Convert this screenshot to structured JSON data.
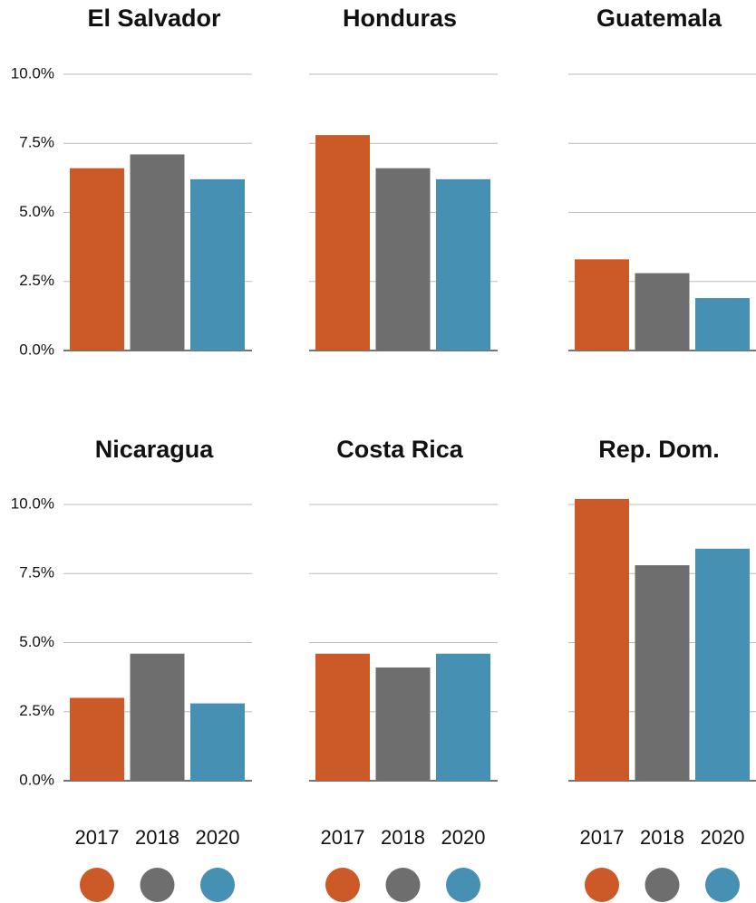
{
  "chart_data": [
    {
      "type": "bar",
      "title": "El Salvador",
      "values": [
        6.6,
        7.1,
        6.2
      ],
      "colors": [
        "#cc5a28",
        "#6e6e6e",
        "#4690b4"
      ],
      "ylim": [
        0,
        10
      ],
      "yticks": [
        {
          "value": 0,
          "label": "0.0%"
        },
        {
          "value": 2.5,
          "label": "2.5%"
        },
        {
          "value": 5,
          "label": "5.0%"
        },
        {
          "value": 7.5,
          "label": "7.5%"
        },
        {
          "value": 10,
          "label": "10.0%"
        }
      ]
    },
    {
      "type": "bar",
      "title": "Honduras",
      "values": [
        7.8,
        6.6,
        6.2
      ],
      "colors": [
        "#cc5a28",
        "#6e6e6e",
        "#4690b4"
      ],
      "ylim": [
        0,
        10
      ],
      "yticks": [
        0,
        2.5,
        5,
        7.5,
        10
      ]
    },
    {
      "type": "bar",
      "title": "Guatemala",
      "values": [
        3.3,
        2.8,
        1.9
      ],
      "colors": [
        "#cc5a28",
        "#6e6e6e",
        "#4690b4"
      ],
      "ylim": [
        0,
        10
      ],
      "yticks": [
        0,
        2.5,
        5,
        7.5,
        10
      ]
    },
    {
      "type": "bar",
      "title": "Nicaragua",
      "categories": [
        "2017",
        "2018",
        "2020"
      ],
      "values": [
        3.0,
        4.6,
        2.8
      ],
      "colors": [
        "#cc5a28",
        "#6e6e6e",
        "#4690b4"
      ],
      "ylim": [
        0,
        10
      ],
      "yticks": [
        {
          "value": 0,
          "label": "0.0%"
        },
        {
          "value": 2.5,
          "label": "2.5%"
        },
        {
          "value": 5,
          "label": "5.0%"
        },
        {
          "value": 7.5,
          "label": "7.5%"
        },
        {
          "value": 10,
          "label": "10.0%"
        }
      ]
    },
    {
      "type": "bar",
      "title": "Costa Rica",
      "categories": [
        "2017",
        "2018",
        "2020"
      ],
      "values": [
        4.6,
        4.1,
        4.6
      ],
      "colors": [
        "#cc5a28",
        "#6e6e6e",
        "#4690b4"
      ],
      "ylim": [
        0,
        10
      ],
      "yticks": [
        0,
        2.5,
        5,
        7.5,
        10
      ]
    },
    {
      "type": "bar",
      "title": "Rep. Dom.",
      "categories": [
        "2017",
        "2018",
        "2020"
      ],
      "values": [
        10.2,
        7.8,
        8.4
      ],
      "colors": [
        "#cc5a28",
        "#6e6e6e",
        "#4690b4"
      ],
      "ylim": [
        0,
        10
      ],
      "yticks": [
        0,
        2.5,
        5,
        7.5,
        10
      ]
    }
  ]
}
